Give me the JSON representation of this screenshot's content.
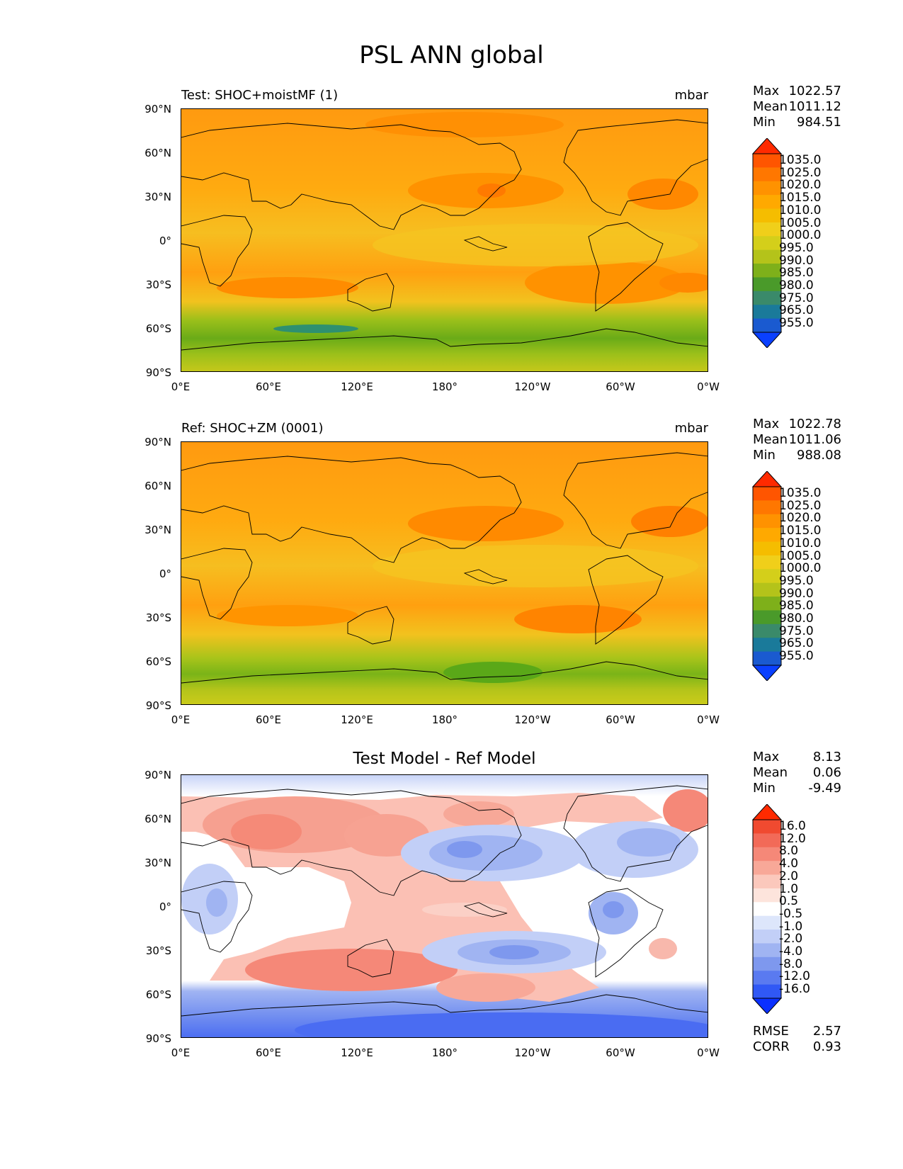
{
  "figure": {
    "title": "PSL ANN global"
  },
  "axes": {
    "lat_ticks": [
      "90°N",
      "60°N",
      "30°N",
      "0°",
      "30°S",
      "60°S",
      "90°S"
    ],
    "lon_ticks": [
      "0°E",
      "60°E",
      "120°E",
      "180°",
      "120°W",
      "60°W",
      "0°W"
    ]
  },
  "panels": [
    {
      "title_left": "Test: SHOC+moistMF (1)",
      "units": "mbar",
      "stats": [
        {
          "label": "Max",
          "value": "1022.57"
        },
        {
          "label": "Mean",
          "value": "1011.12"
        },
        {
          "label": "Min",
          "value": "984.51"
        }
      ]
    },
    {
      "title_left": "Ref: SHOC+ZM (0001)",
      "units": "mbar",
      "stats": [
        {
          "label": "Max",
          "value": "1022.78"
        },
        {
          "label": "Mean",
          "value": "1011.06"
        },
        {
          "label": "Min",
          "value": "988.08"
        }
      ]
    },
    {
      "title_center": "Test Model - Ref Model",
      "stats": [
        {
          "label": "Max",
          "value": "8.13"
        },
        {
          "label": "Mean",
          "value": "0.06"
        },
        {
          "label": "Min",
          "value": "-9.49"
        }
      ],
      "metrics": [
        {
          "label": "RMSE",
          "value": "2.57"
        },
        {
          "label": "CORR",
          "value": "0.93"
        }
      ]
    }
  ],
  "colorbars": {
    "field": {
      "labels": [
        "1035.0",
        "1025.0",
        "1020.0",
        "1015.0",
        "1010.0",
        "1005.0",
        "1000.0",
        "995.0",
        "990.0",
        "985.0",
        "980.0",
        "975.0",
        "965.0",
        "955.0"
      ],
      "colors": [
        "#ff2a00",
        "#ff5500",
        "#ff7700",
        "#ff9200",
        "#ffa900",
        "#f5bd00",
        "#f0cf1a",
        "#d4cf1a",
        "#b4c31a",
        "#7eb01a",
        "#4a9a2a",
        "#3a8a6a",
        "#1a7a9a",
        "#1a5ad0",
        "#0a40ff"
      ]
    },
    "diff": {
      "labels": [
        "16.0",
        "12.0",
        "8.0",
        "4.0",
        "2.0",
        "1.0",
        "0.5",
        "-0.5",
        "-1.0",
        "-2.0",
        "-4.0",
        "-8.0",
        "-12.0",
        "-16.0"
      ],
      "colors": [
        "#ff2a00",
        "#f04a30",
        "#f26a58",
        "#f58878",
        "#f8a898",
        "#fbc8bc",
        "#fde4dc",
        "#ffffff",
        "#dde6fb",
        "#c2cff7",
        "#a0b4f2",
        "#7e98ee",
        "#5a7af0",
        "#3058f5",
        "#0a30ff"
      ]
    }
  }
}
